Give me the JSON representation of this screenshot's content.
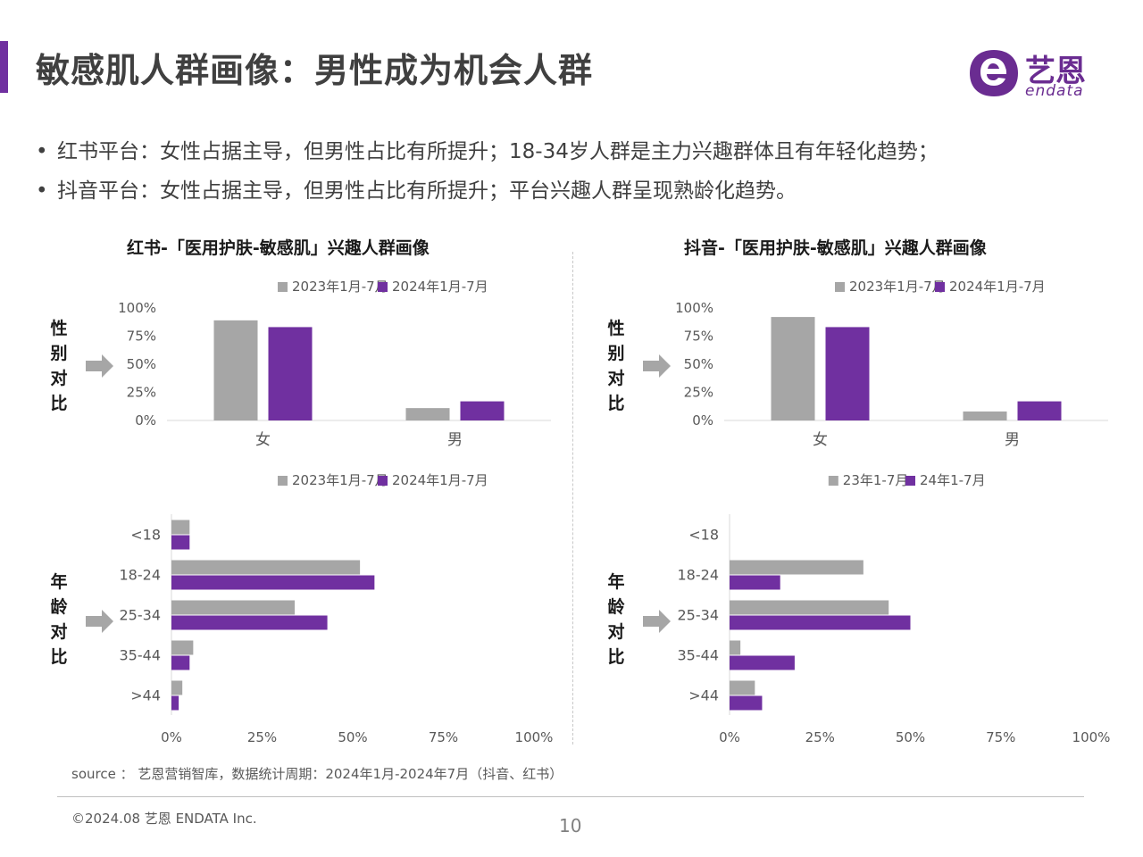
{
  "header": {
    "title": "敏感肌人群画像：男性成为机会人群"
  },
  "logo": {
    "cn": "艺恩",
    "en": "endata"
  },
  "bullets": [
    "红书平台：女性占据主导，但男性占比有所提升；18-34岁人群是主力兴趣群体且有年轻化趋势；",
    "抖音平台：女性占据主导，但男性占比有所提升；平台兴趣人群呈现熟龄化趋势。"
  ],
  "left_panel": {
    "title": "红书-「医用护肤-敏感肌」兴趣人群画像"
  },
  "right_panel": {
    "title": "抖音-「医用护肤-敏感肌」兴趣人群画像"
  },
  "side_labels": {
    "gender": [
      "性",
      "别",
      "对",
      "比"
    ],
    "age": [
      "年",
      "龄",
      "对",
      "比"
    ]
  },
  "colors": {
    "accent": "#7030a0",
    "gray": "#a6a6a6",
    "purple": "#7030a0",
    "axis": "#d9d9d9",
    "text": "#595959"
  },
  "chart_data": [
    {
      "id": "xhs-gender",
      "type": "bar",
      "orientation": "vertical",
      "categories": [
        "女",
        "男"
      ],
      "series": [
        {
          "name": "2023年1月-7月",
          "color": "#a6a6a6",
          "values": [
            89,
            11
          ]
        },
        {
          "name": "2024年1月-7月",
          "color": "#7030a0",
          "values": [
            83,
            17
          ]
        }
      ],
      "ylim": [
        0,
        100
      ],
      "yticks": [
        "0%",
        "25%",
        "50%",
        "75%",
        "100%"
      ],
      "legend": "top"
    },
    {
      "id": "xhs-age",
      "type": "bar",
      "orientation": "horizontal",
      "categories": [
        "<18",
        "18-24",
        "25-34",
        "35-44",
        ">44"
      ],
      "series": [
        {
          "name": "2023年1月-7月",
          "color": "#a6a6a6",
          "values": [
            5,
            52,
            34,
            6,
            3
          ]
        },
        {
          "name": "2024年1月-7月",
          "color": "#7030a0",
          "values": [
            5,
            56,
            43,
            5,
            2
          ]
        }
      ],
      "xlim": [
        0,
        100
      ],
      "xticks": [
        "0%",
        "25%",
        "50%",
        "75%",
        "100%"
      ],
      "legend": "top"
    },
    {
      "id": "dy-gender",
      "type": "bar",
      "orientation": "vertical",
      "categories": [
        "女",
        "男"
      ],
      "series": [
        {
          "name": "2023年1月-7月",
          "color": "#a6a6a6",
          "values": [
            92,
            8
          ]
        },
        {
          "name": "2024年1月-7月",
          "color": "#7030a0",
          "values": [
            83,
            17
          ]
        }
      ],
      "ylim": [
        0,
        100
      ],
      "yticks": [
        "0%",
        "25%",
        "50%",
        "75%",
        "100%"
      ],
      "legend": "top"
    },
    {
      "id": "dy-age",
      "type": "bar",
      "orientation": "horizontal",
      "categories": [
        "<18",
        "18-24",
        "25-34",
        "35-44",
        ">44"
      ],
      "series": [
        {
          "name": "23年1-7月",
          "color": "#a6a6a6",
          "values": [
            0,
            37,
            44,
            3,
            7
          ]
        },
        {
          "name": "24年1-7月",
          "color": "#7030a0",
          "values": [
            0,
            14,
            50,
            18,
            9
          ]
        }
      ],
      "xlim": [
        0,
        100
      ],
      "xticks": [
        "0%",
        "25%",
        "50%",
        "75%",
        "100%"
      ],
      "legend": "top"
    }
  ],
  "footer": {
    "source": "source ： 艺恩营销智库，数据统计周期：2024年1月-2024年7月（抖音、红书）",
    "copyright": "©2024.08  艺恩 ENDATA Inc.",
    "page": "10"
  }
}
